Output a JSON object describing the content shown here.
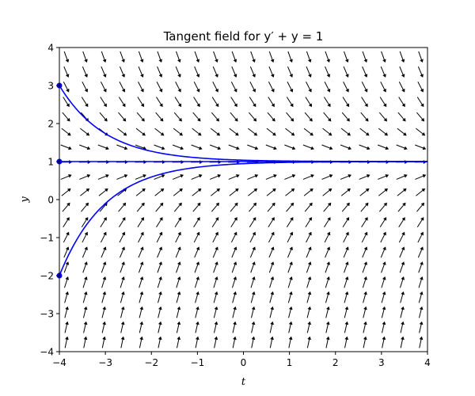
{
  "chart_data": {
    "type": "line",
    "title": "Tangent field for y′ + y = 1",
    "xlabel": "t",
    "ylabel": "y",
    "xlim": [
      -4,
      4
    ],
    "ylim": [
      -4,
      4
    ],
    "x_ticks": [
      "−4",
      "−3",
      "−2",
      "−1",
      "0",
      "1",
      "2",
      "3",
      "4"
    ],
    "y_ticks": [
      "−4",
      "−3",
      "−2",
      "−1",
      "0",
      "1",
      "2",
      "3",
      "4"
    ],
    "grid": false,
    "direction_field": {
      "equation": "y' = 1 - y",
      "t_range": [
        -3.85,
        3.85
      ],
      "y_range": [
        -3.75,
        3.75
      ],
      "columns": 20,
      "rows": 20,
      "color": "#000000"
    },
    "series": [
      {
        "x0": -4,
        "y0": 3,
        "color": "#0000ff"
      },
      {
        "x0": -4,
        "y0": 1,
        "color": "#0000ff"
      },
      {
        "x0": -4,
        "y0": -2,
        "color": "#0000ff"
      }
    ]
  }
}
